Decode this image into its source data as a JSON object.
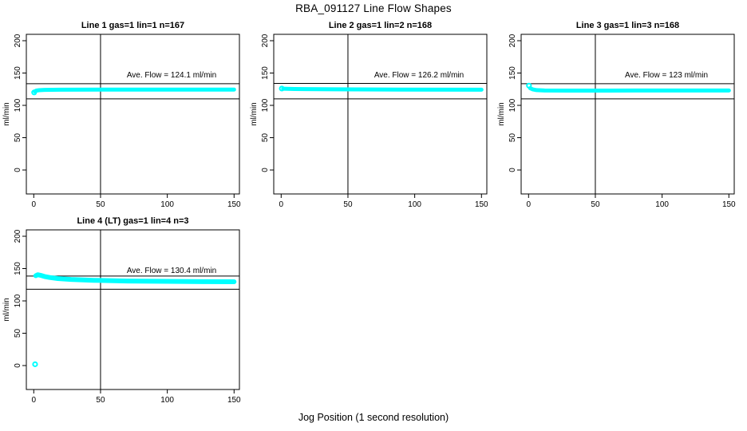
{
  "page": {
    "title": "RBA_091127  Line Flow Shapes",
    "xlabel": "Jog Position (1 second resolution)",
    "ylabel": "ml/min"
  },
  "colors": {
    "points": "#00ffff",
    "axis": "#000000",
    "background": "#ffffff"
  },
  "chart_data": {
    "type": "scatter",
    "title": "RBA_091127  Line Flow Shapes",
    "xlabel": "Jog Position (1 second resolution)",
    "ylabel": "ml/min",
    "xlim": [
      0,
      150
    ],
    "ylim": [
      0,
      200
    ],
    "x_ticks": [
      0,
      50,
      100,
      150
    ],
    "y_ticks": [
      0,
      50,
      100,
      150,
      200
    ],
    "grid": false,
    "vline_x": 50,
    "point_color": "#00ffff",
    "subplots": [
      {
        "title": "Line 1 gas=1 lin=1 n=167",
        "n": 167,
        "ave_flow": 124.1,
        "ave_label": "Ave. Flow =  124.1  ml/min",
        "hlines": [
          133.5,
          110
        ],
        "markers": [
          [
            0.3,
            120
          ]
        ],
        "band": [
          [
            0.8,
            121.5
          ],
          [
            2,
            122.8
          ],
          [
            4,
            123.5
          ],
          [
            8,
            124
          ],
          [
            20,
            124.2
          ],
          [
            60,
            124.4
          ],
          [
            100,
            124.4
          ],
          [
            150,
            124.4
          ]
        ]
      },
      {
        "title": "Line 2 gas=1 lin=2 n=168",
        "n": 168,
        "ave_flow": 126.2,
        "ave_label": "Ave. Flow =  126.2  ml/min",
        "hlines": [
          134,
          110
        ],
        "markers": [
          [
            0.5,
            126
          ]
        ],
        "band": [
          [
            1.5,
            125.8
          ],
          [
            10,
            125.3
          ],
          [
            40,
            124.8
          ],
          [
            90,
            124.4
          ],
          [
            150,
            124.2
          ]
        ]
      },
      {
        "title": "Line 3 gas=1 lin=3 n=168",
        "n": 168,
        "ave_flow": 123,
        "ave_label": "Ave. Flow =  123  ml/min",
        "hlines": [
          133.5,
          110
        ],
        "markers": [
          [
            0.3,
            130.5
          ]
        ],
        "band": [
          [
            1.2,
            126.5
          ],
          [
            3,
            124.8
          ],
          [
            6,
            123.6
          ],
          [
            12,
            123
          ],
          [
            30,
            122.8
          ],
          [
            80,
            123
          ],
          [
            150,
            123
          ]
        ]
      },
      {
        "title": "Line 4 (LT) gas=1 lin=4 n=3",
        "n": 3,
        "ave_flow": 130.4,
        "ave_label": "Ave. Flow =  130.4  ml/min",
        "hlines": [
          138.5,
          118
        ],
        "markers": [
          [
            1,
            2
          ]
        ],
        "band": [
          [
            1.5,
            139
          ],
          [
            3,
            140.5
          ],
          [
            5,
            139.6
          ],
          [
            8,
            137.8
          ],
          [
            12,
            136.2
          ],
          [
            18,
            134.6
          ],
          [
            28,
            133.2
          ],
          [
            45,
            131.8
          ],
          [
            70,
            130.8
          ],
          [
            100,
            130.2
          ],
          [
            130,
            129.8
          ],
          [
            150,
            129.6
          ]
        ]
      }
    ]
  }
}
